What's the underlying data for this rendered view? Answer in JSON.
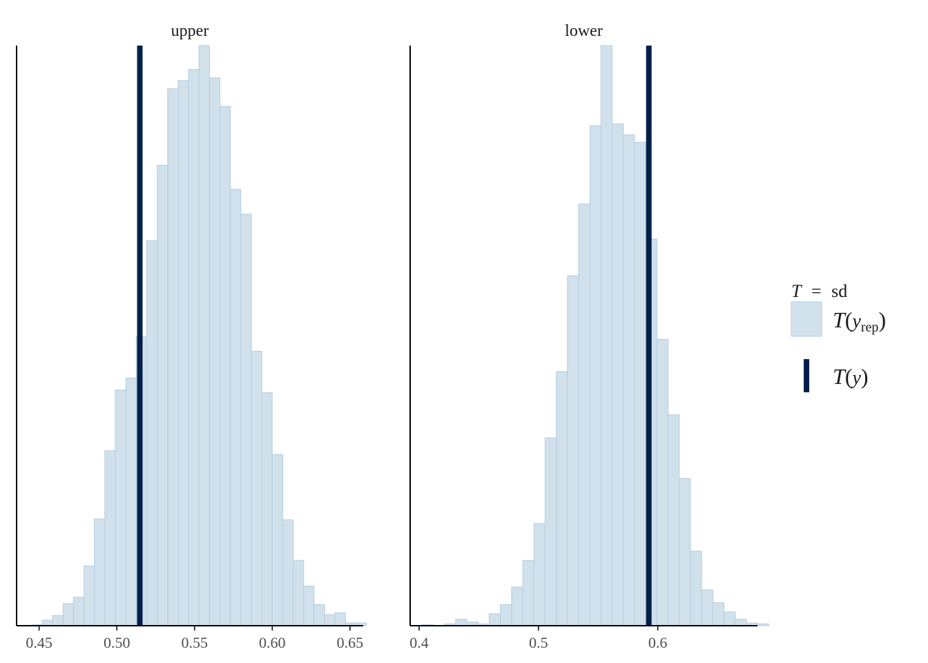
{
  "colors": {
    "hist_fill": "#d1e1ec",
    "hist_stroke": "#b3cde0",
    "obs_line": "#011f4b",
    "axis": "#000000"
  },
  "legend": {
    "title_T": "T",
    "title_eq": "=",
    "title_stat": "sd",
    "rep_T": "T",
    "rep_y": "y",
    "rep_sub": "rep",
    "obs_T": "T",
    "obs_y": "y"
  },
  "chart_data": [
    {
      "type": "bar",
      "title": "upper",
      "xlim": [
        0.4355,
        0.6585
      ],
      "xticks": [
        0.45,
        0.5,
        0.55,
        0.6,
        0.65
      ],
      "xtick_labels": [
        "0.45",
        "0.50",
        "0.55",
        "0.60",
        "0.65"
      ],
      "bin_start": 0.4452,
      "bin_width": 0.00673,
      "counts": [
        1,
        6,
        11,
        24,
        31,
        65,
        116,
        190,
        256,
        269,
        314,
        418,
        500,
        583,
        592,
        604,
        630,
        595,
        564,
        474,
        447,
        298,
        253,
        186,
        115,
        71,
        43,
        23,
        12,
        14,
        3,
        3
      ],
      "observed": 0.5148,
      "ymax": 630,
      "grid": false,
      "ylabel": ""
    },
    {
      "type": "bar",
      "title": "lower",
      "xlim": [
        0.3925,
        0.6835
      ],
      "xticks": [
        0.4,
        0.5,
        0.6
      ],
      "xtick_labels": [
        "0.4",
        "0.5",
        "0.6"
      ],
      "bin_start": 0.4025,
      "bin_width": 0.00937,
      "counts": [
        1,
        0,
        2,
        7,
        4,
        2,
        13,
        23,
        42,
        71,
        111,
        204,
        276,
        380,
        458,
        543,
        630,
        545,
        533,
        525,
        420,
        311,
        229,
        160,
        81,
        39,
        25,
        15,
        7,
        3,
        2
      ],
      "observed": 0.5925,
      "ymax": 630,
      "grid": false,
      "ylabel": ""
    }
  ]
}
